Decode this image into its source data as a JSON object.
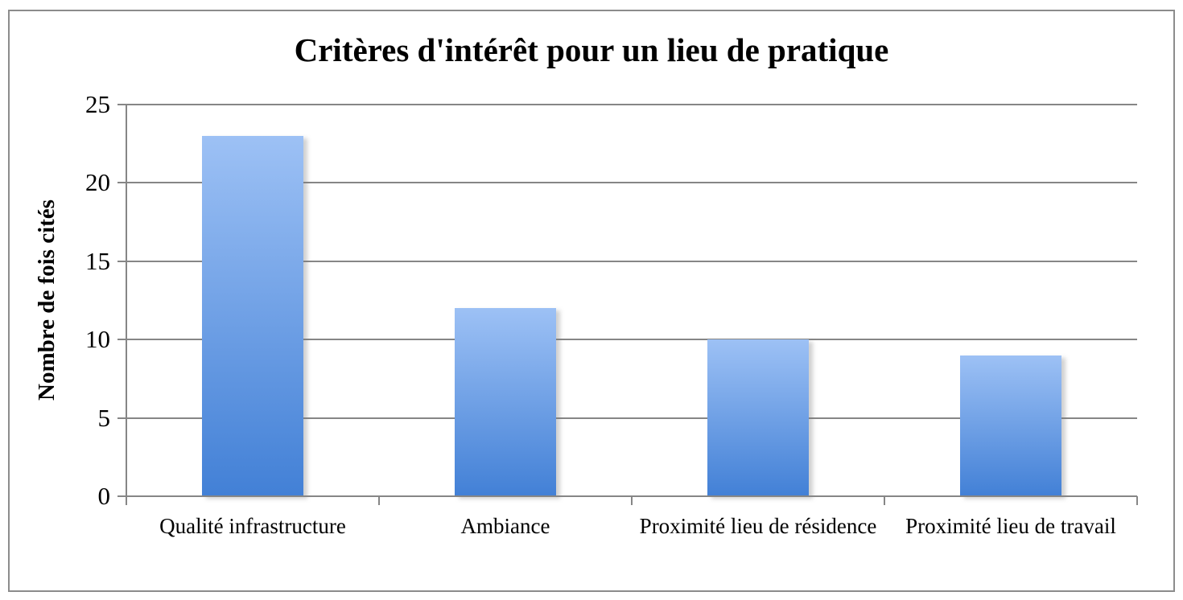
{
  "chart_data": {
    "type": "bar",
    "title": "Critères d'intérêt pour un lieu de pratique",
    "ylabel": "Nombre de fois cités",
    "xlabel": "",
    "categories": [
      "Qualité infrastructure",
      "Ambiance",
      "Proximité lieu de résidence",
      "Proximité lieu de travail"
    ],
    "values": [
      23,
      12,
      10,
      9
    ],
    "ylim": [
      0,
      25
    ],
    "yticks": [
      0,
      5,
      10,
      15,
      20,
      25
    ],
    "grid": "horizontal gridlines on",
    "legend": "none",
    "colors": {
      "bar_gradient_top": "#9dc1f5",
      "bar_gradient_bottom": "#4280d6",
      "grid_line": "#868686",
      "frame_border": "#8c8c8c",
      "text": "#000000",
      "background": "#ffffff"
    }
  }
}
